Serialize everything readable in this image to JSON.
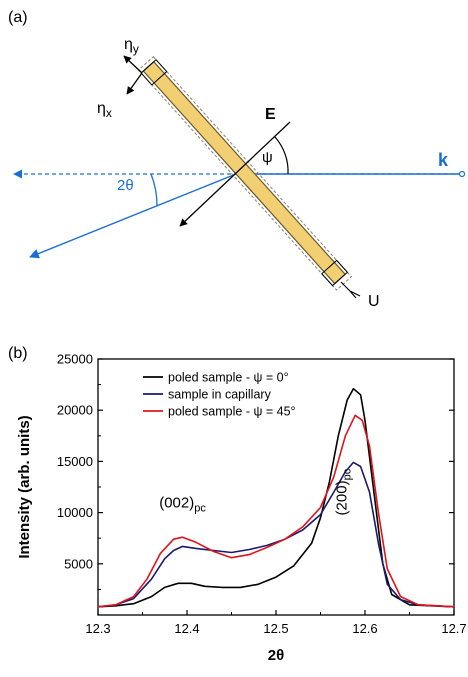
{
  "figure": {
    "panel_a_label": "(a)",
    "panel_b_label": "(b)"
  },
  "diagram": {
    "labels": {
      "eta_y": "η",
      "eta_y_sub": "y",
      "eta_x": "η",
      "eta_x_sub": "x",
      "field": "E",
      "angle_psi": "ψ",
      "wavevector": "k",
      "scatter_angle": "2θ",
      "voltage": "U"
    },
    "colors": {
      "beam": "#1a6fd6",
      "sample_fill": "#f3cf74",
      "sample_edge": "#6b5a2e",
      "ink": "#000000"
    }
  },
  "chart_data": {
    "type": "line",
    "title": "",
    "xlabel": "2θ",
    "ylabel": "Intensity (arb. units)",
    "xlim": [
      12.3,
      12.7
    ],
    "ylim": [
      0,
      25000
    ],
    "x_ticks": [
      "12.3",
      "12.4",
      "12.5",
      "12.6",
      "12.7"
    ],
    "y_ticks": [
      "5000",
      "10000",
      "15000",
      "20000",
      "25000"
    ],
    "legend_position": "top-center",
    "annotations": [
      {
        "text": "(002)",
        "sub": "pc",
        "x": 12.395,
        "y": 10500
      },
      {
        "text": "(200)",
        "sub": "pc",
        "x": 12.57,
        "y": 12000
      }
    ],
    "series": [
      {
        "name": "poled sample -  ψ = 0°",
        "color": "#000000",
        "points": [
          [
            12.3,
            800
          ],
          [
            12.32,
            900
          ],
          [
            12.34,
            1100
          ],
          [
            12.36,
            1800
          ],
          [
            12.375,
            2700
          ],
          [
            12.39,
            3100
          ],
          [
            12.405,
            3100
          ],
          [
            12.42,
            2800
          ],
          [
            12.44,
            2700
          ],
          [
            12.46,
            2700
          ],
          [
            12.48,
            3000
          ],
          [
            12.5,
            3700
          ],
          [
            12.52,
            4800
          ],
          [
            12.54,
            7000
          ],
          [
            12.55,
            9500
          ],
          [
            12.56,
            13000
          ],
          [
            12.57,
            17500
          ],
          [
            12.58,
            21000
          ],
          [
            12.587,
            22100
          ],
          [
            12.595,
            21500
          ],
          [
            12.6,
            19000
          ],
          [
            12.61,
            12000
          ],
          [
            12.62,
            5000
          ],
          [
            12.63,
            2000
          ],
          [
            12.65,
            1000
          ],
          [
            12.7,
            800
          ]
        ]
      },
      {
        "name": "sample in capillary",
        "color": "#1a1a6e",
        "points": [
          [
            12.3,
            800
          ],
          [
            12.32,
            1000
          ],
          [
            12.34,
            1600
          ],
          [
            12.36,
            3500
          ],
          [
            12.375,
            5500
          ],
          [
            12.385,
            6300
          ],
          [
            12.395,
            6700
          ],
          [
            12.41,
            6500
          ],
          [
            12.43,
            6300
          ],
          [
            12.45,
            6100
          ],
          [
            12.47,
            6400
          ],
          [
            12.49,
            6800
          ],
          [
            12.51,
            7400
          ],
          [
            12.53,
            8300
          ],
          [
            12.55,
            9800
          ],
          [
            12.565,
            12000
          ],
          [
            12.578,
            14000
          ],
          [
            12.587,
            14900
          ],
          [
            12.595,
            14500
          ],
          [
            12.605,
            12000
          ],
          [
            12.615,
            7000
          ],
          [
            12.625,
            3000
          ],
          [
            12.64,
            1500
          ],
          [
            12.66,
            1000
          ],
          [
            12.7,
            800
          ]
        ]
      },
      {
        "name": "poled sample - ψ = 45°",
        "color": "#e0141c",
        "points": [
          [
            12.3,
            800
          ],
          [
            12.32,
            1000
          ],
          [
            12.34,
            1800
          ],
          [
            12.355,
            3500
          ],
          [
            12.37,
            6000
          ],
          [
            12.385,
            7400
          ],
          [
            12.395,
            7600
          ],
          [
            12.41,
            7100
          ],
          [
            12.43,
            6200
          ],
          [
            12.45,
            5600
          ],
          [
            12.47,
            5900
          ],
          [
            12.49,
            6600
          ],
          [
            12.51,
            7400
          ],
          [
            12.53,
            8600
          ],
          [
            12.55,
            10500
          ],
          [
            12.565,
            13500
          ],
          [
            12.578,
            17500
          ],
          [
            12.589,
            19500
          ],
          [
            12.597,
            19000
          ],
          [
            12.605,
            16500
          ],
          [
            12.615,
            10000
          ],
          [
            12.625,
            4500
          ],
          [
            12.64,
            1800
          ],
          [
            12.66,
            1000
          ],
          [
            12.7,
            800
          ]
        ]
      }
    ]
  }
}
